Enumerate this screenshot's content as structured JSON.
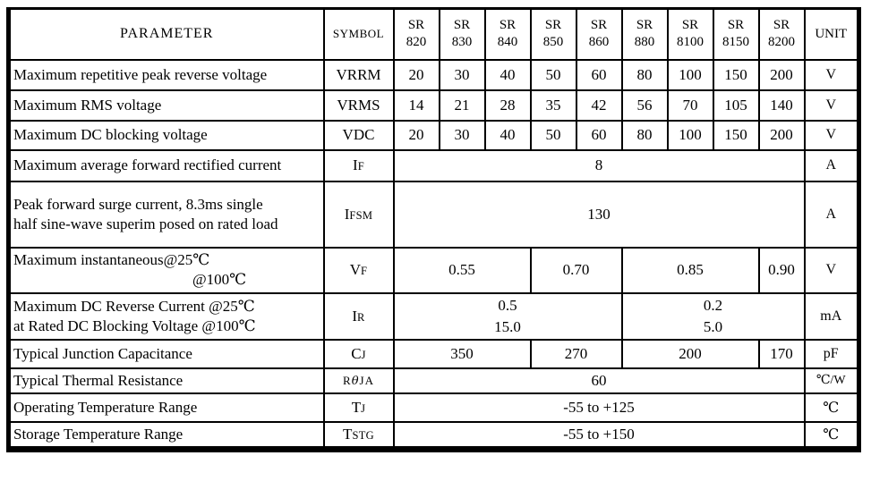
{
  "page": {
    "background_color": "#ffffff",
    "text_color": "#000000",
    "grid_color": "#000000"
  },
  "table": {
    "headers": {
      "parameter": "PARAMETER",
      "symbol": "SYMBOL",
      "unit": "UNIT",
      "parts": [
        {
          "line1": "SR",
          "line2": "820"
        },
        {
          "line1": "SR",
          "line2": "830"
        },
        {
          "line1": "SR",
          "line2": "840"
        },
        {
          "line1": "SR",
          "line2": "850"
        },
        {
          "line1": "SR",
          "line2": "860"
        },
        {
          "line1": "SR",
          "line2": "880"
        },
        {
          "line1": "SR",
          "line2": "8100"
        },
        {
          "line1": "SR",
          "line2": "8150"
        },
        {
          "line1": "SR",
          "line2": "8200"
        }
      ]
    },
    "rows": [
      {
        "key": "vrrm",
        "parameter_lines": [
          {
            "text": "Maximum repetitive peak reverse voltage"
          }
        ],
        "symbol": [
          {
            "text": "V",
            "cls": "sb"
          },
          {
            "text": "RRM",
            "cls": "sb"
          }
        ],
        "values": [
          {
            "text": "20",
            "span": 1
          },
          {
            "text": "30",
            "span": 1
          },
          {
            "text": "40",
            "span": 1
          },
          {
            "text": "50",
            "span": 1
          },
          {
            "text": "60",
            "span": 1
          },
          {
            "text": "80",
            "span": 1
          },
          {
            "text": "100",
            "span": 1
          },
          {
            "text": "150",
            "span": 1
          },
          {
            "text": "200",
            "span": 1
          }
        ],
        "unit": "V"
      },
      {
        "key": "vrms",
        "parameter_lines": [
          {
            "text": "Maximum RMS voltage"
          }
        ],
        "symbol": [
          {
            "text": "V",
            "cls": "sb"
          },
          {
            "text": "RMS",
            "cls": "sb"
          }
        ],
        "values": [
          {
            "text": "14",
            "span": 1
          },
          {
            "text": "21",
            "span": 1
          },
          {
            "text": "28",
            "span": 1
          },
          {
            "text": "35",
            "span": 1
          },
          {
            "text": "42",
            "span": 1
          },
          {
            "text": "56",
            "span": 1
          },
          {
            "text": "70",
            "span": 1
          },
          {
            "text": "105",
            "span": 1
          },
          {
            "text": "140",
            "span": 1
          }
        ],
        "unit": "V"
      },
      {
        "key": "vdc",
        "parameter_lines": [
          {
            "text": "Maximum DC blocking voltage"
          }
        ],
        "symbol": [
          {
            "text": "V",
            "cls": "sb"
          },
          {
            "text": "DC",
            "cls": "sb"
          }
        ],
        "values": [
          {
            "text": "20",
            "span": 1
          },
          {
            "text": "30",
            "span": 1
          },
          {
            "text": "40",
            "span": 1
          },
          {
            "text": "50",
            "span": 1
          },
          {
            "text": "60",
            "span": 1
          },
          {
            "text": "80",
            "span": 1
          },
          {
            "text": "100",
            "span": 1
          },
          {
            "text": "150",
            "span": 1
          },
          {
            "text": "200",
            "span": 1
          }
        ],
        "unit": "V"
      },
      {
        "key": "if",
        "parameter_lines": [
          {
            "text": "Maximum average forward rectified current"
          }
        ],
        "symbol": [
          {
            "text": "I",
            "cls": "sb"
          },
          {
            "text": "F",
            "cls": "ss"
          }
        ],
        "values": [
          {
            "text": "8",
            "span": 9
          }
        ],
        "unit": "A"
      },
      {
        "key": "ifsm",
        "parameter_lines": [
          {
            "text": "Peak forward surge current, 8.3ms single"
          },
          {
            "text": "half sine-wave superim posed on rated load"
          }
        ],
        "symbol": [
          {
            "text": "I",
            "cls": "sb"
          },
          {
            "text": "FSM",
            "cls": "ss"
          }
        ],
        "values": [
          {
            "text": "130",
            "span": 9
          }
        ],
        "unit": "A"
      },
      {
        "key": "vf",
        "parameter_lines": [
          {
            "text": "Maximum instantaneous@25℃"
          },
          {
            "text": "@100℃",
            "indent": true
          }
        ],
        "symbol": [
          {
            "text": "V",
            "cls": "sb"
          },
          {
            "text": "F",
            "cls": "ss"
          }
        ],
        "values": [
          {
            "text": "0.55",
            "span": 3
          },
          {
            "text": "0.70",
            "span": 2
          },
          {
            "text": "0.85",
            "span": 3
          },
          {
            "text": "0.90",
            "span": 1
          }
        ],
        "unit": "V"
      },
      {
        "key": "ir",
        "parameter_lines": [
          {
            "text": "Maximum DC Reverse Current @25℃"
          },
          {
            "text": "at Rated DC Blocking Voltage @100℃"
          }
        ],
        "symbol": [
          {
            "text": "I",
            "cls": "sb"
          },
          {
            "text": "R",
            "cls": "ss"
          }
        ],
        "values": [
          {
            "lines": [
              "0.5",
              "15.0"
            ],
            "span": 5
          },
          {
            "lines": [
              "0.2",
              "5.0"
            ],
            "span": 4
          }
        ],
        "unit": "mA"
      },
      {
        "key": "cj",
        "parameter_lines": [
          {
            "text": "Typical Junction Capacitance"
          }
        ],
        "symbol": [
          {
            "text": "C",
            "cls": "sb"
          },
          {
            "text": "J",
            "cls": "ss"
          }
        ],
        "values": [
          {
            "text": "350",
            "span": 3
          },
          {
            "text": "270",
            "span": 2
          },
          {
            "text": "200",
            "span": 3
          },
          {
            "text": "170",
            "span": 1
          }
        ],
        "unit": "pF"
      },
      {
        "key": "rthja",
        "parameter_lines": [
          {
            "text": "Typical Thermal Resistance"
          }
        ],
        "symbol_class": "sym-rtheta",
        "symbol": [
          {
            "text": "R",
            "cls": "sr"
          },
          {
            "text": "θ",
            "cls": "s-theta"
          },
          {
            "text": "JA",
            "cls": "sr"
          }
        ],
        "values": [
          {
            "text": "60",
            "span": 9
          }
        ],
        "unit": "℃/W"
      },
      {
        "key": "tj",
        "parameter_lines": [
          {
            "text": "Operating Temperature Range"
          }
        ],
        "symbol": [
          {
            "text": "T",
            "cls": "sb"
          },
          {
            "text": "J",
            "cls": "ss"
          }
        ],
        "values": [
          {
            "text": "-55 to +125",
            "span": 9
          }
        ],
        "unit": "℃"
      },
      {
        "key": "tstg",
        "parameter_lines": [
          {
            "text": "Storage Temperature Range"
          }
        ],
        "symbol": [
          {
            "text": "T",
            "cls": "sb"
          },
          {
            "text": "STG",
            "cls": "ss"
          }
        ],
        "values": [
          {
            "text": "-55 to +150",
            "span": 9
          }
        ],
        "unit": "℃"
      }
    ]
  }
}
